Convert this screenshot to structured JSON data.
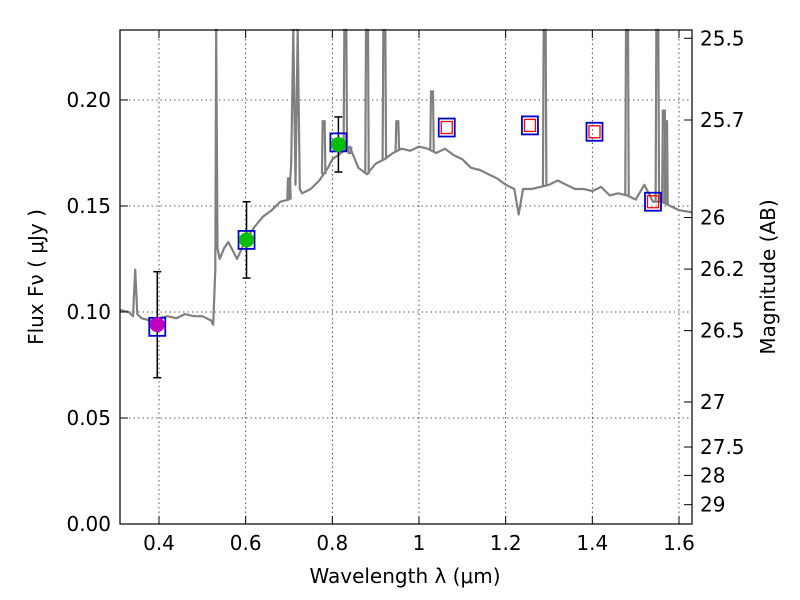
{
  "chart_data": {
    "type": "line",
    "title": "",
    "xlabel": "Wavelength  λ (μm)",
    "ylabel": "Flux  Fν  ( μJy )",
    "ylabel_right": "Magnitude (AB)",
    "xlim": [
      0.31,
      1.63
    ],
    "ylim": [
      0.0,
      0.233
    ],
    "grid": true,
    "legend": "none",
    "x_ticks": [
      {
        "value": 0.4,
        "label": "0.4"
      },
      {
        "value": 0.6,
        "label": "0.6"
      },
      {
        "value": 0.8,
        "label": "0.8"
      },
      {
        "value": 1.0,
        "label": "1"
      },
      {
        "value": 1.2,
        "label": "1.2"
      },
      {
        "value": 1.4,
        "label": "1.4"
      },
      {
        "value": 1.6,
        "label": "1.6"
      }
    ],
    "y_ticks": [
      {
        "value": 0.0,
        "label": "0.00"
      },
      {
        "value": 0.05,
        "label": "0.05"
      },
      {
        "value": 0.1,
        "label": "0.10"
      },
      {
        "value": 0.15,
        "label": "0.15"
      },
      {
        "value": 0.2,
        "label": "0.20"
      }
    ],
    "mag_ticks": [
      {
        "value": 25.5,
        "label": "25.5"
      },
      {
        "value": 25.7,
        "label": "25.7"
      },
      {
        "value": 26.0,
        "label": "26"
      },
      {
        "value": 26.2,
        "label": "26.2"
      },
      {
        "value": 26.5,
        "label": "26.5"
      },
      {
        "value": 27.0,
        "label": "27"
      },
      {
        "value": 27.5,
        "label": "27.5"
      },
      {
        "value": 28.0,
        "label": "28"
      },
      {
        "value": 29.0,
        "label": "29"
      }
    ],
    "series": [
      {
        "kind": "spectrum",
        "color": "#808080",
        "x": [
          0.31,
          0.33,
          0.34,
          0.345,
          0.35,
          0.36,
          0.38,
          0.4,
          0.42,
          0.44,
          0.46,
          0.48,
          0.5,
          0.52,
          0.525,
          0.53,
          0.532,
          0.535,
          0.54,
          0.55,
          0.56,
          0.57,
          0.58,
          0.6,
          0.62,
          0.64,
          0.66,
          0.68,
          0.7,
          0.705,
          0.71,
          0.715,
          0.72,
          0.725,
          0.73,
          0.75,
          0.77,
          0.79,
          0.8,
          0.82,
          0.84,
          0.86,
          0.88,
          0.9,
          0.92,
          0.94,
          0.96,
          0.98,
          1.0,
          1.02,
          1.04,
          1.05,
          1.06,
          1.08,
          1.1,
          1.12,
          1.14,
          1.16,
          1.18,
          1.2,
          1.22,
          1.23,
          1.24,
          1.26,
          1.28,
          1.3,
          1.32,
          1.34,
          1.36,
          1.38,
          1.4,
          1.42,
          1.44,
          1.46,
          1.48,
          1.5,
          1.52,
          1.54,
          1.56,
          1.58,
          1.6,
          1.63
        ],
        "y": [
          0.101,
          0.1,
          0.098,
          0.12,
          0.099,
          0.097,
          0.096,
          0.097,
          0.098,
          0.097,
          0.099,
          0.098,
          0.098,
          0.096,
          0.094,
          0.12,
          0.233,
          0.13,
          0.125,
          0.13,
          0.133,
          0.129,
          0.125,
          0.134,
          0.14,
          0.145,
          0.148,
          0.152,
          0.153,
          0.17,
          0.233,
          0.16,
          0.233,
          0.158,
          0.156,
          0.158,
          0.162,
          0.168,
          0.172,
          0.175,
          0.178,
          0.168,
          0.165,
          0.17,
          0.172,
          0.175,
          0.177,
          0.176,
          0.178,
          0.177,
          0.175,
          0.176,
          0.177,
          0.174,
          0.172,
          0.168,
          0.167,
          0.165,
          0.163,
          0.16,
          0.158,
          0.146,
          0.158,
          0.158,
          0.159,
          0.16,
          0.162,
          0.16,
          0.158,
          0.158,
          0.157,
          0.159,
          0.155,
          0.156,
          0.155,
          0.153,
          0.16,
          0.152,
          0.152,
          0.15,
          0.148,
          0.147
        ]
      }
    ],
    "spikes": [
      {
        "x": 0.532,
        "top": 0.233
      },
      {
        "x": 0.7,
        "top": 0.163
      },
      {
        "x": 0.71,
        "top": 0.233
      },
      {
        "x": 0.72,
        "top": 0.233
      },
      {
        "x": 0.78,
        "top": 0.19
      },
      {
        "x": 0.83,
        "top": 0.233
      },
      {
        "x": 0.84,
        "top": 0.175
      },
      {
        "x": 0.88,
        "top": 0.233
      },
      {
        "x": 0.92,
        "top": 0.233
      },
      {
        "x": 0.95,
        "top": 0.19
      },
      {
        "x": 1.03,
        "top": 0.204
      },
      {
        "x": 1.29,
        "top": 0.233
      },
      {
        "x": 1.48,
        "top": 0.233
      },
      {
        "x": 1.55,
        "top": 0.233
      },
      {
        "x": 1.565,
        "top": 0.195
      },
      {
        "x": 1.57,
        "top": 0.19
      }
    ],
    "observed": [
      {
        "x": 0.396,
        "y": 0.094,
        "err": 0.025,
        "color": "#bf00bf"
      },
      {
        "x": 0.602,
        "y": 0.134,
        "err": 0.018,
        "color": "#00bf00"
      },
      {
        "x": 0.814,
        "y": 0.179,
        "err": 0.013,
        "color": "#00bf00"
      }
    ],
    "model_boxes": [
      {
        "x": 0.396,
        "y": 0.093
      },
      {
        "x": 0.602,
        "y": 0.134
      },
      {
        "x": 0.814,
        "y": 0.18
      },
      {
        "x": 1.064,
        "y": 0.187
      },
      {
        "x": 1.256,
        "y": 0.188
      },
      {
        "x": 1.405,
        "y": 0.185
      },
      {
        "x": 1.54,
        "y": 0.152
      }
    ],
    "upper_limits": [
      {
        "x": 1.064,
        "y": 0.187
      },
      {
        "x": 1.256,
        "y": 0.188
      },
      {
        "x": 1.405,
        "y": 0.185
      },
      {
        "x": 1.54,
        "y": 0.152
      }
    ],
    "colors": {
      "box": "#0000cc",
      "limit": "#ff0000",
      "spectrum": "#808080"
    }
  }
}
